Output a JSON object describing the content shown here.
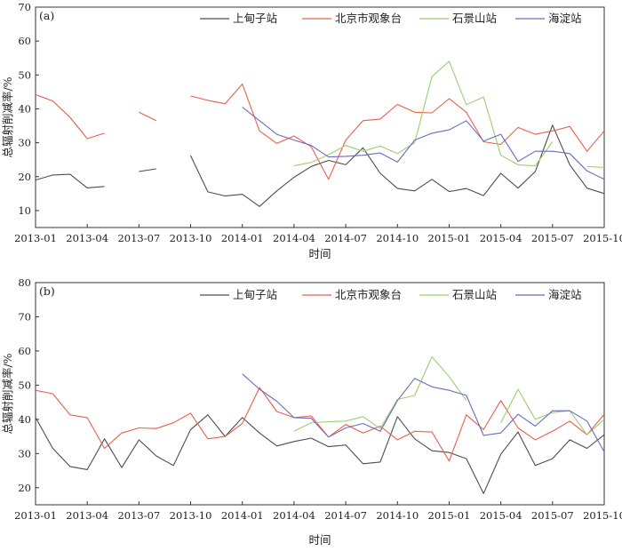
{
  "colors": {
    "上甸子站": "#4d4d4d",
    "北京市观象台": "#e8604c",
    "石景山站": "#9ccf6e",
    "海淀站": "#6b6bc0"
  },
  "chart_data": [
    {
      "type": "line",
      "title": "",
      "panel_label": "(a)",
      "xlabel": "时间",
      "ylabel": "总辐射削减率/%",
      "ylim": [
        5,
        70
      ],
      "yticks": [
        10,
        20,
        30,
        40,
        50,
        60,
        70
      ],
      "xticks": [
        "2013-01",
        "2013-04",
        "2013-07",
        "2013-10",
        "2014-01",
        "2014-04",
        "2014-07",
        "2014-10",
        "2015-01",
        "2015-04",
        "2015-07",
        "2015-10"
      ],
      "x": [
        "2013-01",
        "2013-02",
        "2013-03",
        "2013-04",
        "2013-05",
        "2013-06",
        "2013-07",
        "2013-08",
        "2013-09",
        "2013-10",
        "2013-11",
        "2013-12",
        "2014-01",
        "2014-02",
        "2014-03",
        "2014-04",
        "2014-05",
        "2014-06",
        "2014-07",
        "2014-08",
        "2014-09",
        "2014-10",
        "2014-11",
        "2014-12",
        "2015-01",
        "2015-02",
        "2015-03",
        "2015-04",
        "2015-05",
        "2015-06",
        "2015-07",
        "2015-08",
        "2015-09",
        "2015-10"
      ],
      "legend_position": "top",
      "series": [
        {
          "name": "上甸子站",
          "values": [
            19.0,
            20.5,
            20.7,
            16.7,
            17.1,
            null,
            21.5,
            22.3,
            null,
            26.2,
            15.5,
            14.3,
            14.8,
            11.2,
            15.8,
            19.8,
            23.0,
            24.8,
            23.5,
            28.5,
            21.0,
            16.5,
            15.8,
            19.2,
            15.6,
            16.5,
            14.4,
            21.0,
            16.6,
            21.5,
            35.2,
            23.5,
            16.6,
            15.0
          ]
        },
        {
          "name": "北京市观象台",
          "values": [
            44.2,
            42.3,
            37.5,
            31.2,
            32.8,
            null,
            39.0,
            36.5,
            null,
            43.8,
            42.5,
            41.5,
            47.3,
            33.5,
            29.8,
            32.0,
            28.8,
            19.2,
            30.8,
            36.5,
            37.0,
            41.3,
            39.0,
            38.8,
            43.0,
            39.0,
            30.3,
            29.5,
            34.5,
            32.5,
            33.5,
            34.8,
            27.5,
            33.5
          ]
        },
        {
          "name": "石景山站",
          "values": [
            null,
            null,
            null,
            null,
            null,
            null,
            null,
            null,
            null,
            null,
            null,
            null,
            null,
            null,
            null,
            23.2,
            24.2,
            26.5,
            29.2,
            27.5,
            29.0,
            26.8,
            30.0,
            49.5,
            54.0,
            41.2,
            43.5,
            26.3,
            23.5,
            23.2,
            30.3,
            null,
            23.0,
            22.7
          ]
        },
        {
          "name": "海淀站",
          "values": [
            null,
            null,
            null,
            null,
            null,
            null,
            null,
            null,
            null,
            null,
            null,
            null,
            40.5,
            36.5,
            32.5,
            30.8,
            29.2,
            25.8,
            26.0,
            26.3,
            27.0,
            24.3,
            30.8,
            32.8,
            33.8,
            36.5,
            30.5,
            32.5,
            24.5,
            27.5,
            27.5,
            26.8,
            21.7,
            19.2
          ]
        }
      ]
    },
    {
      "type": "line",
      "title": "",
      "panel_label": "(b)",
      "xlabel": "时间",
      "ylabel": "总辐射削减率/%",
      "ylim": [
        15,
        80
      ],
      "yticks": [
        20,
        30,
        40,
        50,
        60,
        70,
        80
      ],
      "xticks": [
        "2013-01",
        "2013-04",
        "2013-07",
        "2013-10",
        "2014-01",
        "2014-04",
        "2014-07",
        "2014-10",
        "2015-01",
        "2015-04",
        "2015-07",
        "2015-10"
      ],
      "x": [
        "2013-01",
        "2013-02",
        "2013-03",
        "2013-04",
        "2013-05",
        "2013-06",
        "2013-07",
        "2013-08",
        "2013-09",
        "2013-10",
        "2013-11",
        "2013-12",
        "2014-01",
        "2014-02",
        "2014-03",
        "2014-04",
        "2014-05",
        "2014-06",
        "2014-07",
        "2014-08",
        "2014-09",
        "2014-10",
        "2014-11",
        "2014-12",
        "2015-01",
        "2015-02",
        "2015-03",
        "2015-04",
        "2015-05",
        "2015-06",
        "2015-07",
        "2015-08",
        "2015-09",
        "2015-10"
      ],
      "legend_position": "top",
      "series": [
        {
          "name": "上甸子站",
          "values": [
            40.5,
            31.5,
            26.2,
            25.3,
            34.3,
            25.9,
            34.0,
            29.3,
            26.5,
            37.0,
            41.3,
            35.0,
            40.5,
            36.0,
            32.2,
            33.5,
            34.5,
            32.0,
            32.5,
            27.0,
            27.5,
            40.8,
            34.3,
            30.8,
            30.3,
            28.5,
            18.3,
            29.8,
            36.3,
            26.5,
            28.5,
            34.0,
            31.5,
            35.5
          ]
        },
        {
          "name": "北京市观象台",
          "values": [
            48.5,
            47.5,
            41.3,
            40.5,
            31.5,
            36.0,
            37.5,
            37.3,
            39.0,
            41.8,
            34.3,
            35.0,
            38.8,
            49.3,
            42.3,
            40.5,
            41.0,
            34.8,
            38.5,
            36.0,
            38.0,
            34.0,
            36.5,
            36.3,
            27.8,
            41.3,
            37.0,
            45.5,
            37.5,
            34.0,
            36.5,
            39.5,
            35.5,
            41.5
          ]
        },
        {
          "name": "石景山站",
          "values": [
            null,
            null,
            null,
            null,
            null,
            null,
            null,
            null,
            null,
            null,
            null,
            null,
            null,
            null,
            null,
            36.5,
            39.0,
            39.3,
            39.5,
            40.8,
            37.3,
            45.8,
            47.0,
            58.3,
            52.5,
            45.5,
            null,
            39.0,
            48.8,
            40.0,
            42.0,
            42.5,
            35.5,
            40.0
          ]
        },
        {
          "name": "海淀站",
          "values": [
            null,
            null,
            null,
            null,
            null,
            null,
            null,
            null,
            null,
            null,
            null,
            null,
            53.3,
            48.8,
            45.3,
            40.5,
            40.3,
            34.8,
            37.5,
            38.8,
            36.5,
            45.5,
            52.0,
            49.5,
            48.5,
            47.0,
            35.3,
            36.0,
            41.5,
            38.0,
            42.5,
            42.5,
            39.5,
            30.5
          ]
        }
      ]
    }
  ]
}
